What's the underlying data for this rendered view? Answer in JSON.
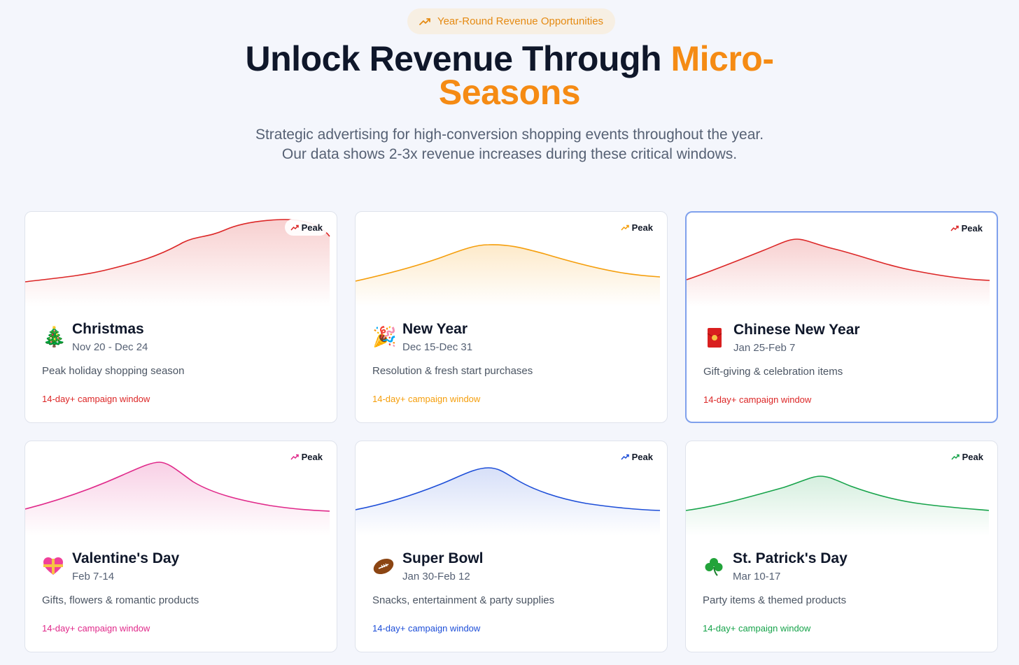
{
  "hero": {
    "badge": "Year-Round Revenue Opportunities",
    "title_main": "Unlock Revenue Through ",
    "title_accent_1": "Micro-",
    "title_accent_2": "Seasons",
    "subtitle_1": "Strategic advertising for high-conversion shopping events throughout the year.",
    "subtitle_2": "Our data shows 2-3x revenue increases during these critical windows.",
    "accent_color": "#f58b14"
  },
  "cards": [
    {
      "name": "Christmas",
      "dates": "Nov 20 - Dec 24",
      "description": "Peak holiday shopping season",
      "window": "14-day+ campaign window",
      "peak": "Peak",
      "color": "#dc2626",
      "icon": "christmas-tree-icon",
      "emoji": "🎄"
    },
    {
      "name": "New Year",
      "dates": "Dec 15-Dec 31",
      "description": "Resolution & fresh start purchases",
      "window": "14-day+ campaign window",
      "peak": "Peak",
      "color": "#f59e0b",
      "icon": "party-popper-icon",
      "emoji": "🎉"
    },
    {
      "name": "Chinese New Year",
      "dates": "Jan 25-Feb 7",
      "description": "Gift-giving & celebration items",
      "window": "14-day+ campaign window",
      "peak": "Peak",
      "color": "#dc2626",
      "icon": "red-envelope-icon",
      "emoji": "🧧"
    },
    {
      "name": "Valentine's Day",
      "dates": "Feb 7-14",
      "description": "Gifts, flowers & romantic products",
      "window": "14-day+ campaign window",
      "peak": "Peak",
      "color": "#e0298a",
      "icon": "heart-with-ribbon-icon",
      "emoji": "💝"
    },
    {
      "name": "Super Bowl",
      "dates": "Jan 30-Feb 12",
      "description": "Snacks, entertainment & party supplies",
      "window": "14-day+ campaign window",
      "peak": "Peak",
      "color": "#1d4ed8",
      "icon": "football-icon",
      "emoji": "🏈"
    },
    {
      "name": "St. Patrick's Day",
      "dates": "Mar 10-17",
      "description": "Party items & themed products",
      "window": "14-day+ campaign window",
      "peak": "Peak",
      "color": "#16a34a",
      "icon": "shamrock-icon",
      "emoji": "☘"
    }
  ]
}
